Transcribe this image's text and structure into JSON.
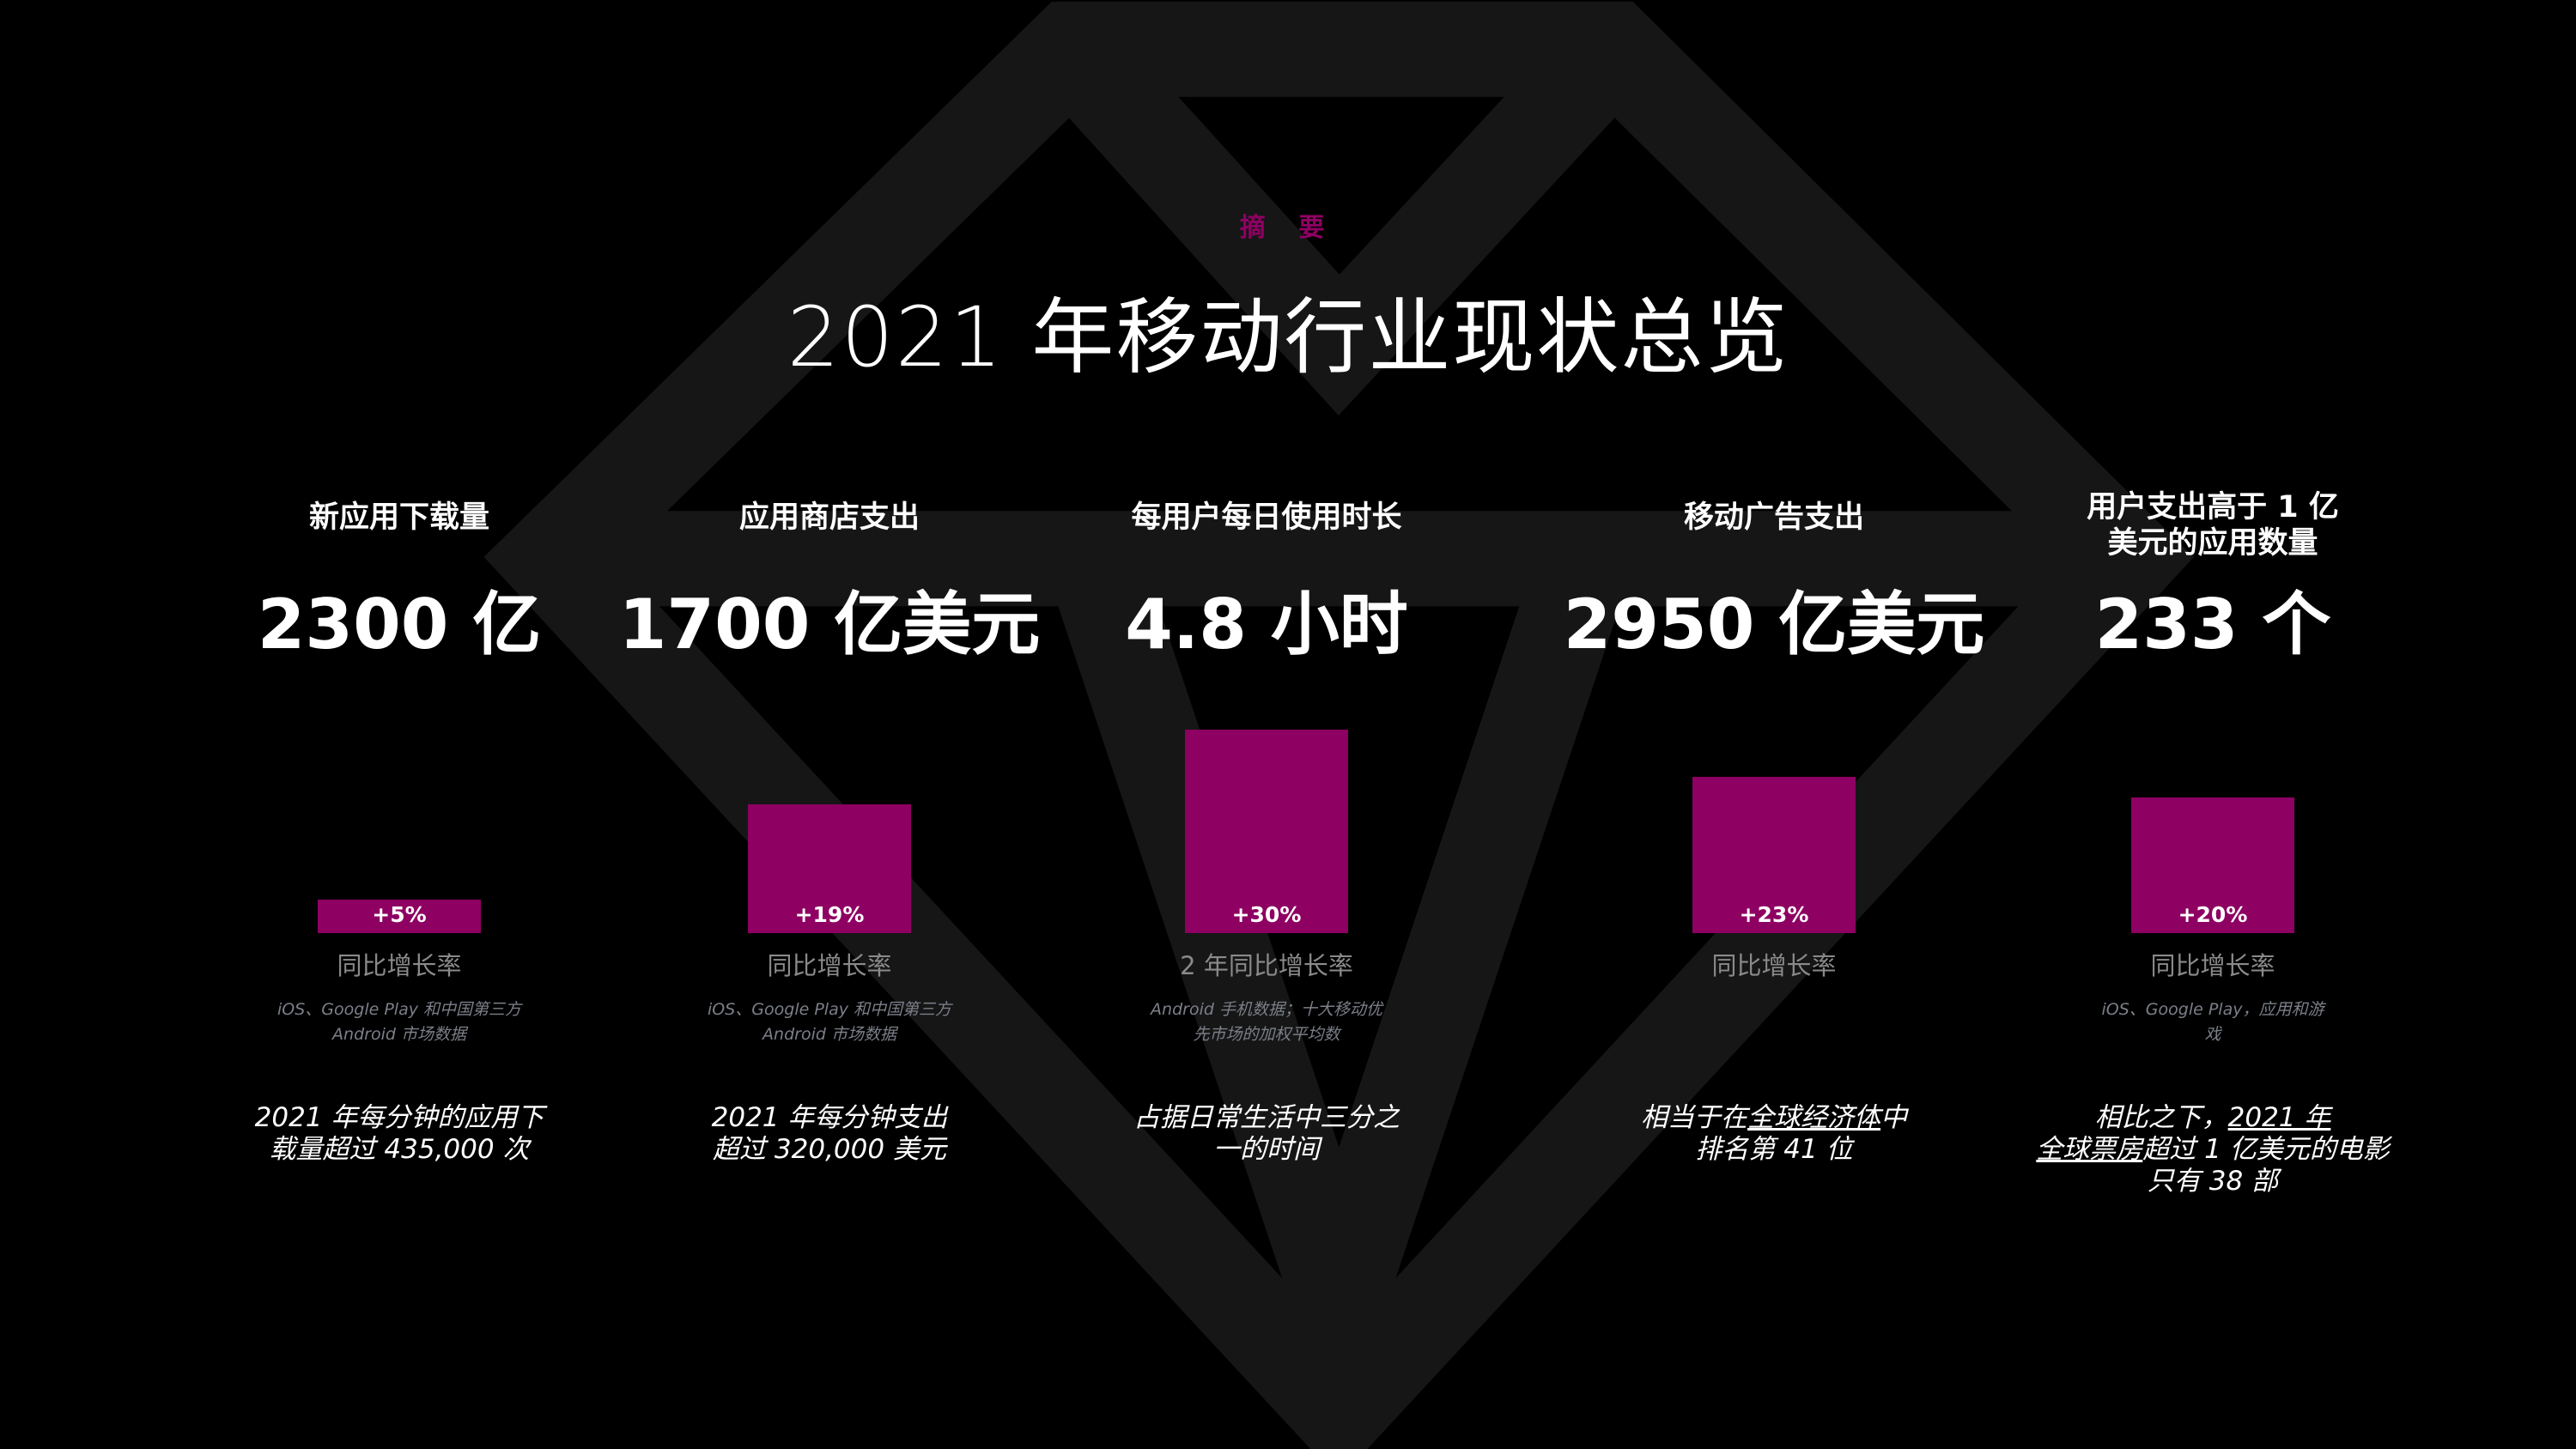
{
  "colors": {
    "background": "#000000",
    "accent": "#8e0062",
    "diamond": "#161616"
  },
  "header": {
    "kicker": "摘 要",
    "title": "2021 年移动行业现状总览"
  },
  "metrics": [
    {
      "heading": [
        "新应用下载量"
      ],
      "value": "2300 亿",
      "growth_pct": 5,
      "growth_label": "+5%",
      "sub": "同比增长率",
      "note": [
        "iOS、Google Play 和中国第三方",
        "Android 市场数据"
      ],
      "desc": [
        [
          {
            "t": "2021 年每分钟的应用下"
          }
        ],
        [
          {
            "t": "载量超过 435,000 次"
          }
        ]
      ]
    },
    {
      "heading": [
        "应用商店支出"
      ],
      "value": "1700 亿美元",
      "growth_pct": 19,
      "growth_label": "+19%",
      "sub": "同比增长率",
      "note": [
        "iOS、Google Play 和中国第三方",
        "Android 市场数据"
      ],
      "desc": [
        [
          {
            "t": "2021 年每分钟支出"
          }
        ],
        [
          {
            "t": "超过 320,000 美元"
          }
        ]
      ]
    },
    {
      "heading": [
        "每用户每日使用时长"
      ],
      "value": "4.8 小时",
      "growth_pct": 30,
      "growth_label": "+30%",
      "sub": "2 年同比增长率",
      "note": [
        "Android 手机数据；十大移动优",
        "先市场的加权平均数"
      ],
      "desc": [
        [
          {
            "t": "占据日常生活中三分之"
          }
        ],
        [
          {
            "t": "一的时间"
          }
        ]
      ]
    },
    {
      "heading": [
        "移动广告支出"
      ],
      "value": "2950 亿美元",
      "growth_pct": 23,
      "growth_label": "+23%",
      "sub": "同比增长率",
      "note": [
        ""
      ],
      "desc": [
        [
          {
            "t": "相当于在"
          },
          {
            "t": "全球经济体",
            "u": true
          },
          {
            "t": "中"
          }
        ],
        [
          {
            "t": "排名第 41 位"
          }
        ]
      ]
    },
    {
      "heading": [
        "用户支出高于 1 亿",
        "美元的应用数量"
      ],
      "value": "233 个",
      "growth_pct": 20,
      "growth_label": "+20%",
      "sub": "同比增长率",
      "note": [
        "iOS、Google Play，应用和游",
        "戏"
      ],
      "desc": [
        [
          {
            "t": "相比之下，"
          },
          {
            "t": "2021 年",
            "u": true
          }
        ],
        [
          {
            "t": "全球票房",
            "u": true
          },
          {
            "t": "超过 1 亿美元的电影"
          }
        ],
        [
          {
            "t": "只有 38 部"
          }
        ]
      ]
    }
  ]
}
